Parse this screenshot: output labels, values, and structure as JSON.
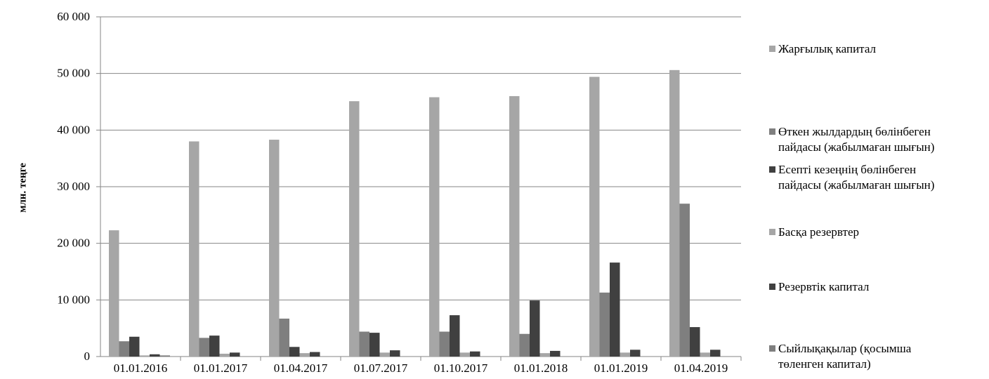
{
  "chart_data": {
    "type": "bar",
    "title": "",
    "xlabel": "",
    "ylabel": "млн. теңге",
    "ylim": [
      0,
      60000
    ],
    "yticks": [
      0,
      10000,
      20000,
      30000,
      40000,
      50000,
      60000
    ],
    "ytick_labels": [
      "0",
      "10 000",
      "20 000",
      "30 000",
      "40 000",
      "50 000",
      "60 000"
    ],
    "grid": true,
    "legend_position": "right",
    "categories": [
      "01.01.2016",
      "01.01.2017",
      "01.04.2017",
      "01.07.2017",
      "01.10.2017",
      "01.01.2018",
      "01.01.2019",
      "01.04.2019"
    ],
    "series": [
      {
        "name": "Жарғылық капитал",
        "color": "#a6a6a6",
        "values": [
          22300,
          38000,
          38300,
          45100,
          45800,
          46000,
          49400,
          50600
        ]
      },
      {
        "name": "Өткен жылдардың бөлінбеген\nпайдасы (жабылмаған шығын)",
        "color": "#7f7f7f",
        "values": [
          2700,
          3300,
          6700,
          4400,
          4400,
          4000,
          11300,
          27000
        ]
      },
      {
        "name": "Есепті кезеңнің бөлінбеген\nпайдасы (жабылмаған шығын)",
        "color": "#404040",
        "values": [
          3500,
          3700,
          1700,
          4200,
          7300,
          9900,
          16600,
          5200
        ]
      },
      {
        "name": "Басқа резервтер",
        "color": "#a6a6a6",
        "values": [
          200,
          500,
          600,
          700,
          700,
          600,
          700,
          700
        ]
      },
      {
        "name": "Резервтік капитал",
        "color": "#404040",
        "values": [
          400,
          700,
          800,
          1100,
          900,
          1000,
          1200,
          1200
        ]
      },
      {
        "name": "Сыйлықақылар (қосымша\nтөленген капитал)",
        "color": "#7f7f7f",
        "values": [
          200,
          0,
          0,
          0,
          0,
          0,
          0,
          0
        ]
      }
    ]
  }
}
